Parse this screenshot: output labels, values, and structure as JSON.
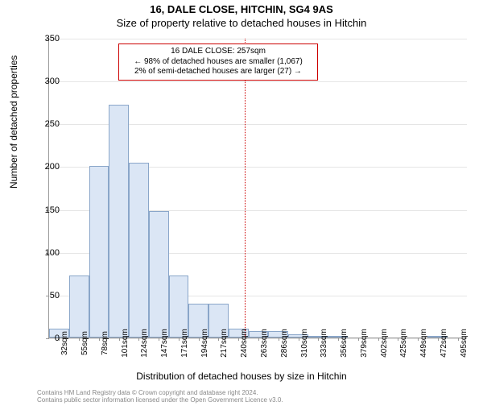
{
  "title_main": "16, DALE CLOSE, HITCHIN, SG4 9AS",
  "title_sub": "Size of property relative to detached houses in Hitchin",
  "ylabel": "Number of detached properties",
  "xlabel": "Distribution of detached houses by size in Hitchin",
  "annotation": {
    "line1": "16 DALE CLOSE: 257sqm",
    "line2": "← 98% of detached houses are smaller (1,067)",
    "line3": "2% of semi-detached houses are larger (27) →",
    "border_color": "#cc0000"
  },
  "chart": {
    "type": "histogram",
    "ylim": [
      0,
      350
    ],
    "ytick_step": 50,
    "yticks": [
      0,
      50,
      100,
      150,
      200,
      250,
      300,
      350
    ],
    "xticks": [
      "32sqm",
      "55sqm",
      "78sqm",
      "101sqm",
      "124sqm",
      "147sqm",
      "171sqm",
      "194sqm",
      "217sqm",
      "240sqm",
      "263sqm",
      "286sqm",
      "310sqm",
      "333sqm",
      "356sqm",
      "379sqm",
      "402sqm",
      "425sqm",
      "449sqm",
      "472sqm",
      "495sqm"
    ],
    "bar_fill": "#dbe6f5",
    "bar_border": "#8aa6c9",
    "grid_color": "#e5e5e5",
    "background_color": "#ffffff",
    "marker_x_index": 9.8,
    "marker_color": "#cc0000",
    "values": [
      10,
      72,
      200,
      272,
      204,
      148,
      72,
      40,
      40,
      10,
      8,
      8,
      4,
      2,
      2,
      0,
      0,
      0,
      0,
      2,
      0
    ]
  },
  "footer": {
    "line1": "Contains HM Land Registry data © Crown copyright and database right 2024.",
    "line2": "Contains public sector information licensed under the Open Government Licence v3.0.",
    "color": "#9a9a9a"
  },
  "fonts": {
    "title_size": 13,
    "label_size": 12,
    "tick_size": 10,
    "annotation_size": 10
  }
}
